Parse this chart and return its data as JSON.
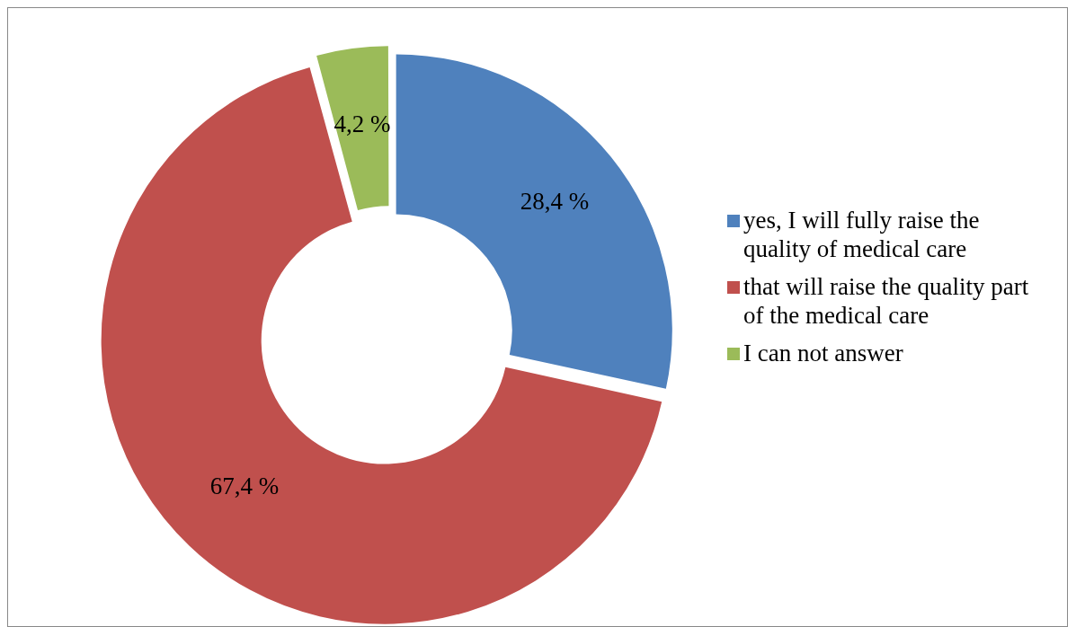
{
  "chart_data": {
    "type": "donut",
    "categories": [
      "yes, I will fully raise the quality of medical care",
      "that will raise the quality part of the medical care",
      "I can not answer"
    ],
    "values": [
      28.4,
      67.4,
      4.2
    ],
    "colors": [
      "#4f81bd",
      "#c0504d",
      "#9bbb59"
    ],
    "value_labels": [
      "28,4 %",
      "67,4 %",
      "4,2 %"
    ],
    "legend": "right"
  }
}
